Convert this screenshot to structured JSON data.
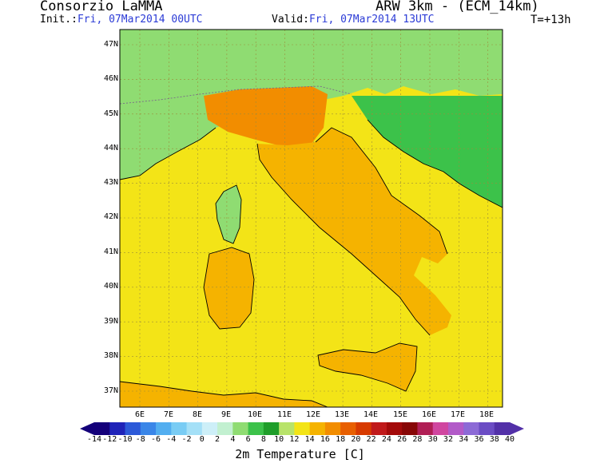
{
  "header": {
    "org": "Consorzio LaMMA",
    "product": "ARW 3km - (ECM_14km)",
    "init_prefix": "Init.:",
    "init_value": "Fri, 07Mar2014 00UTC",
    "valid_prefix": "Valid:",
    "valid_value": "Fri, 07Mar2014 13UTC",
    "step": "T=+13h"
  },
  "map": {
    "lat_labels": [
      "47N",
      "46N",
      "45N",
      "44N",
      "43N",
      "42N",
      "41N",
      "40N",
      "39N",
      "38N",
      "37N"
    ],
    "lon_labels": [
      "6E",
      "7E",
      "8E",
      "9E",
      "10E",
      "11E",
      "12E",
      "13E",
      "14E",
      "15E",
      "16E",
      "17E",
      "18E"
    ],
    "colors": {
      "sea": "#f3e417",
      "warm_land": "#f5b300",
      "hot_land": "#f28d00",
      "green_land": "#3cc24a",
      "light_green": "#8fdc72",
      "mountain_cold": "#a8e6f0",
      "snow": "#e8f6fb",
      "grid": "#9b8c3a"
    }
  },
  "colorbar": {
    "levels": [
      "-14",
      "-12",
      "-10",
      "-8",
      "-6",
      "-4",
      "-2",
      "0",
      "2",
      "4",
      "6",
      "8",
      "10",
      "12",
      "14",
      "16",
      "18",
      "20",
      "22",
      "24",
      "26",
      "28",
      "30",
      "32",
      "34",
      "36",
      "38",
      "40"
    ],
    "colors": [
      "#14007a",
      "#1f23b8",
      "#2c59d8",
      "#3a86e8",
      "#52aef0",
      "#79ccf4",
      "#a4e0f7",
      "#cdeff8",
      "#c2f0d0",
      "#8fdc72",
      "#3cc24a",
      "#1f9e2a",
      "#b8e36a",
      "#f3e417",
      "#f5b300",
      "#f28d00",
      "#e85f00",
      "#d73a00",
      "#c0191a",
      "#a30a0a",
      "#870606",
      "#b01e55",
      "#d046a0",
      "#b25ac8",
      "#8c6ad6",
      "#6b4cc4",
      "#5230a8"
    ],
    "title": "2m Temperature [C]"
  }
}
